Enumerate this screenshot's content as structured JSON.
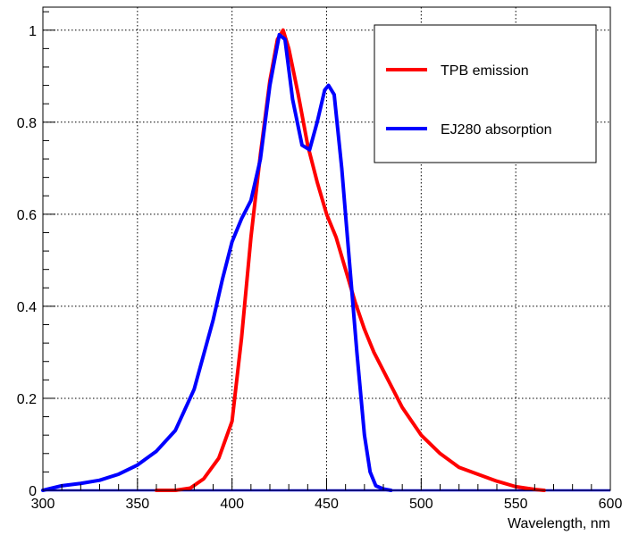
{
  "chart_data": {
    "type": "line",
    "title": "",
    "xlabel": "Wavelength, nm",
    "ylabel": "",
    "xlim": [
      300,
      600
    ],
    "ylim": [
      0,
      1.05
    ],
    "xticks": [
      300,
      350,
      400,
      450,
      500,
      550,
      600
    ],
    "yticks": [
      0,
      0.2,
      0.4,
      0.6,
      0.8,
      1
    ],
    "ytick_labels": [
      "0",
      "0.2",
      "0.4",
      "0.6",
      "0.8",
      "1"
    ],
    "grid": true,
    "legend_position": "top-right",
    "series": [
      {
        "name": "TPB emission",
        "color": "#ff0000",
        "points": [
          [
            360,
            0.0
          ],
          [
            370,
            0.0
          ],
          [
            378,
            0.005
          ],
          [
            385,
            0.025
          ],
          [
            393,
            0.07
          ],
          [
            400,
            0.15
          ],
          [
            405,
            0.33
          ],
          [
            410,
            0.55
          ],
          [
            415,
            0.73
          ],
          [
            420,
            0.89
          ],
          [
            424,
            0.98
          ],
          [
            427,
            1.0
          ],
          [
            430,
            0.96
          ],
          [
            435,
            0.86
          ],
          [
            440,
            0.75
          ],
          [
            445,
            0.67
          ],
          [
            450,
            0.6
          ],
          [
            455,
            0.55
          ],
          [
            460,
            0.48
          ],
          [
            465,
            0.41
          ],
          [
            470,
            0.35
          ],
          [
            475,
            0.3
          ],
          [
            480,
            0.26
          ],
          [
            490,
            0.18
          ],
          [
            500,
            0.12
          ],
          [
            510,
            0.08
          ],
          [
            520,
            0.05
          ],
          [
            530,
            0.035
          ],
          [
            540,
            0.02
          ],
          [
            550,
            0.008
          ],
          [
            560,
            0.002
          ],
          [
            565,
            0.0
          ]
        ]
      },
      {
        "name": "EJ280 absorption",
        "color": "#0000ff",
        "points": [
          [
            300,
            0.0
          ],
          [
            310,
            0.01
          ],
          [
            320,
            0.015
          ],
          [
            330,
            0.022
          ],
          [
            340,
            0.035
          ],
          [
            350,
            0.055
          ],
          [
            360,
            0.085
          ],
          [
            370,
            0.13
          ],
          [
            380,
            0.22
          ],
          [
            390,
            0.37
          ],
          [
            395,
            0.46
          ],
          [
            400,
            0.54
          ],
          [
            405,
            0.59
          ],
          [
            410,
            0.63
          ],
          [
            415,
            0.72
          ],
          [
            420,
            0.88
          ],
          [
            425,
            0.99
          ],
          [
            428,
            0.98
          ],
          [
            432,
            0.85
          ],
          [
            437,
            0.75
          ],
          [
            441,
            0.74
          ],
          [
            445,
            0.8
          ],
          [
            449,
            0.87
          ],
          [
            451,
            0.88
          ],
          [
            454,
            0.86
          ],
          [
            458,
            0.7
          ],
          [
            462,
            0.5
          ],
          [
            466,
            0.3
          ],
          [
            470,
            0.12
          ],
          [
            473,
            0.04
          ],
          [
            476,
            0.01
          ],
          [
            480,
            0.003
          ],
          [
            484,
            0.0
          ]
        ]
      }
    ],
    "baseline": {
      "x_range": [
        300,
        600
      ],
      "value": 0,
      "color": "#0000ff"
    }
  }
}
